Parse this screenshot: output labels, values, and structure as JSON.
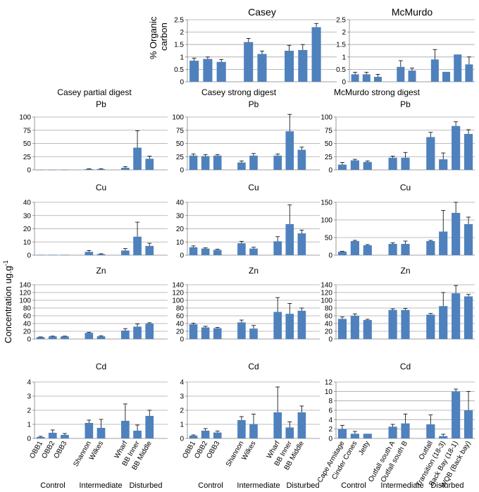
{
  "figure": {
    "ylabel_main": "Concentration ug.g",
    "ylabel_main_sup": "-1",
    "column_titles": [
      "Casey partial digest",
      "Casey strong digest",
      "McMurdo strong digest"
    ],
    "group_labels": [
      "Control",
      "Intermediate",
      "Disturbed"
    ],
    "casey_categories": [
      "OBB1",
      "OBB2",
      "OBB3",
      "Shannon",
      "Wilkes",
      "Wharf",
      "BB Inner",
      "BB Middle"
    ],
    "mcmurdo_categories": [
      "Cape Armitage",
      "Cinder Cones",
      "Jetty",
      "Outfall south A",
      "Outfall south B",
      "Outfall",
      "Transition (18-3)",
      "Back Bay (18-1)",
      "WQB (Back bay)"
    ]
  },
  "colors": {
    "bar": "#4f81bd",
    "grid": "#a6a6a6",
    "axis": "#808080",
    "error": "#000000"
  },
  "chart_data": [
    {
      "id": "casey-oc",
      "type": "bar",
      "title": "Casey",
      "ylabel": "% Organic carbon",
      "ylim": [
        0,
        2.5
      ],
      "ticks": [
        "0",
        "0.5",
        "1",
        "1.5",
        "2",
        "2.5"
      ],
      "tick_values": [
        0,
        0.5,
        1,
        1.5,
        2,
        2.5
      ],
      "categories": [
        "OBB1",
        "OBB2",
        "OBB3",
        "Shannon",
        "Wilkes",
        "Wharf",
        "BB Inner",
        "BB Middle"
      ],
      "values": [
        0.85,
        0.92,
        0.8,
        1.6,
        1.12,
        1.25,
        1.28,
        2.2
      ],
      "errors": [
        0.1,
        0.08,
        0.1,
        0.15,
        0.12,
        0.22,
        0.22,
        0.15
      ]
    },
    {
      "id": "mcmurdo-oc",
      "type": "bar",
      "title": "McMurdo",
      "ylabel": "",
      "ylim": [
        0,
        2.5
      ],
      "ticks": [
        "0",
        "0.5",
        "1",
        "1.5",
        "2",
        "2.5"
      ],
      "tick_values": [
        0,
        0.5,
        1,
        1.5,
        2,
        2.5
      ],
      "categories": [
        "Cape Armitage",
        "Cinder Cones",
        "Jetty",
        "Outfall south A",
        "Outfall south B",
        "Outfall",
        "Transition (18-3)",
        "Back Bay (18-1)",
        "WQB (Back bay)"
      ],
      "values": [
        0.3,
        0.3,
        0.2,
        0.6,
        0.45,
        0.9,
        0.4,
        1.1,
        0.7
      ],
      "errors": [
        0.08,
        0.08,
        0.1,
        0.25,
        0.1,
        0.4,
        0,
        0,
        0.3
      ]
    },
    {
      "id": "cp-pb",
      "type": "bar",
      "title": "Pb",
      "ylim": [
        0,
        100
      ],
      "ticks": [
        "0",
        "25",
        "50",
        "75",
        "100"
      ],
      "tick_values": [
        0,
        25,
        50,
        75,
        100
      ],
      "values": [
        0.3,
        0.3,
        0.3,
        1.5,
        1.5,
        4,
        42,
        21
      ],
      "errors": [
        0,
        0,
        0,
        0.5,
        0.5,
        2,
        32,
        5
      ]
    },
    {
      "id": "cs-pb",
      "type": "bar",
      "title": "Pb",
      "ylim": [
        0,
        100
      ],
      "ticks": [
        "0",
        "25",
        "50",
        "75",
        "100"
      ],
      "tick_values": [
        0,
        25,
        50,
        75,
        100
      ],
      "values": [
        27,
        26,
        27,
        14,
        27,
        27,
        73,
        38
      ],
      "errors": [
        3,
        3,
        2,
        3,
        4,
        3,
        32,
        5
      ]
    },
    {
      "id": "mm-pb",
      "type": "bar",
      "title": "Pb",
      "ylim": [
        0,
        100
      ],
      "ticks": [
        "0",
        "25",
        "50",
        "75",
        "100"
      ],
      "tick_values": [
        0,
        25,
        50,
        75,
        100
      ],
      "values": [
        10,
        18,
        15,
        23,
        23,
        62,
        20,
        83,
        68
      ],
      "errors": [
        4,
        2,
        2,
        3,
        10,
        9,
        12,
        8,
        8
      ]
    },
    {
      "id": "cp-cu",
      "type": "bar",
      "title": "Cu",
      "ylim": [
        0,
        40
      ],
      "ticks": [
        "0",
        "10",
        "20",
        "30",
        "40"
      ],
      "tick_values": [
        0,
        10,
        20,
        30,
        40
      ],
      "values": [
        0.3,
        0.3,
        0.3,
        2.5,
        0.8,
        3.5,
        14,
        7
      ],
      "errors": [
        0,
        0,
        0,
        1,
        0.3,
        1.5,
        11,
        2
      ]
    },
    {
      "id": "cs-cu",
      "type": "bar",
      "title": "Cu",
      "ylim": [
        0,
        40
      ],
      "ticks": [
        "0",
        "10",
        "20",
        "30",
        "40"
      ],
      "tick_values": [
        0,
        10,
        20,
        30,
        40
      ],
      "values": [
        6,
        5,
        4,
        9,
        5,
        10.5,
        23.5,
        16.5
      ],
      "errors": [
        1,
        0.5,
        0.5,
        1.5,
        1,
        3.5,
        14.5,
        2.5
      ]
    },
    {
      "id": "mm-cu",
      "type": "bar",
      "title": "Cu",
      "ylim": [
        0,
        150
      ],
      "ticks": [
        "0",
        "50",
        "100",
        "150"
      ],
      "tick_values": [
        0,
        50,
        100,
        150
      ],
      "values": [
        10,
        40,
        28,
        32,
        32,
        40,
        67,
        120,
        88
      ],
      "errors": [
        1,
        2,
        2,
        3,
        8,
        2,
        60,
        30,
        20
      ]
    },
    {
      "id": "cp-zn",
      "type": "bar",
      "title": "Zn",
      "ylim": [
        0,
        140
      ],
      "ticks": [
        "0",
        "20",
        "40",
        "60",
        "80",
        "100",
        "120",
        "140"
      ],
      "tick_values": [
        0,
        20,
        40,
        60,
        80,
        100,
        120,
        140
      ],
      "values": [
        5,
        7,
        7,
        16,
        7,
        22,
        32,
        40
      ],
      "errors": [
        0.5,
        0.5,
        0.5,
        1.5,
        1,
        5,
        7,
        2
      ]
    },
    {
      "id": "cs-zn",
      "type": "bar",
      "title": "Zn",
      "ylim": [
        0,
        140
      ],
      "ticks": [
        "0",
        "20",
        "40",
        "60",
        "80",
        "100",
        "120",
        "140"
      ],
      "tick_values": [
        0,
        20,
        40,
        60,
        80,
        100,
        120,
        140
      ],
      "values": [
        38,
        30,
        28,
        43,
        27,
        70,
        65,
        73
      ],
      "errors": [
        3,
        3,
        2,
        6,
        8,
        37,
        27,
        7
      ]
    },
    {
      "id": "mm-zn",
      "type": "bar",
      "title": "Zn",
      "ylim": [
        0,
        140
      ],
      "ticks": [
        "0",
        "20",
        "40",
        "60",
        "80",
        "100",
        "120",
        "140"
      ],
      "tick_values": [
        0,
        20,
        40,
        60,
        80,
        100,
        120,
        140
      ],
      "values": [
        52,
        60,
        49,
        75,
        75,
        63,
        85,
        118,
        110
      ],
      "errors": [
        5,
        5,
        2,
        3,
        4,
        3,
        35,
        20,
        5
      ]
    },
    {
      "id": "cp-cd",
      "type": "bar",
      "title": "Cd",
      "ylim": [
        0,
        4
      ],
      "ticks": [
        "0",
        "1",
        "2",
        "3",
        "4"
      ],
      "tick_values": [
        0,
        1,
        2,
        3,
        4
      ],
      "values": [
        0.1,
        0.4,
        0.25,
        1.1,
        0.75,
        1.25,
        0.55,
        1.6
      ],
      "errors": [
        0.05,
        0.2,
        0.1,
        0.2,
        0.6,
        1.2,
        0.4,
        0.4
      ]
    },
    {
      "id": "cs-cd",
      "type": "bar",
      "title": "Cd",
      "ylim": [
        0,
        4
      ],
      "ticks": [
        "0",
        "1",
        "2",
        "3",
        "4"
      ],
      "tick_values": [
        0,
        1,
        2,
        3,
        4
      ],
      "values": [
        0.2,
        0.55,
        0.42,
        1.3,
        1.02,
        1.85,
        0.78,
        1.85
      ],
      "errors": [
        0.05,
        0.15,
        0.1,
        0.25,
        0.7,
        1.8,
        0.4,
        0.45
      ]
    },
    {
      "id": "mm-cd",
      "type": "bar",
      "title": "Cd",
      "ylim": [
        0,
        12
      ],
      "ticks": [
        "0",
        "2",
        "4",
        "6",
        "8",
        "10",
        "12"
      ],
      "tick_values": [
        0,
        2,
        4,
        6,
        8,
        10,
        12
      ],
      "values": [
        2,
        1,
        1,
        2.5,
        3.2,
        3,
        0.5,
        10,
        6
      ],
      "errors": [
        0.8,
        0.5,
        0,
        0.5,
        2,
        2,
        0.4,
        0.5,
        4
      ]
    }
  ]
}
